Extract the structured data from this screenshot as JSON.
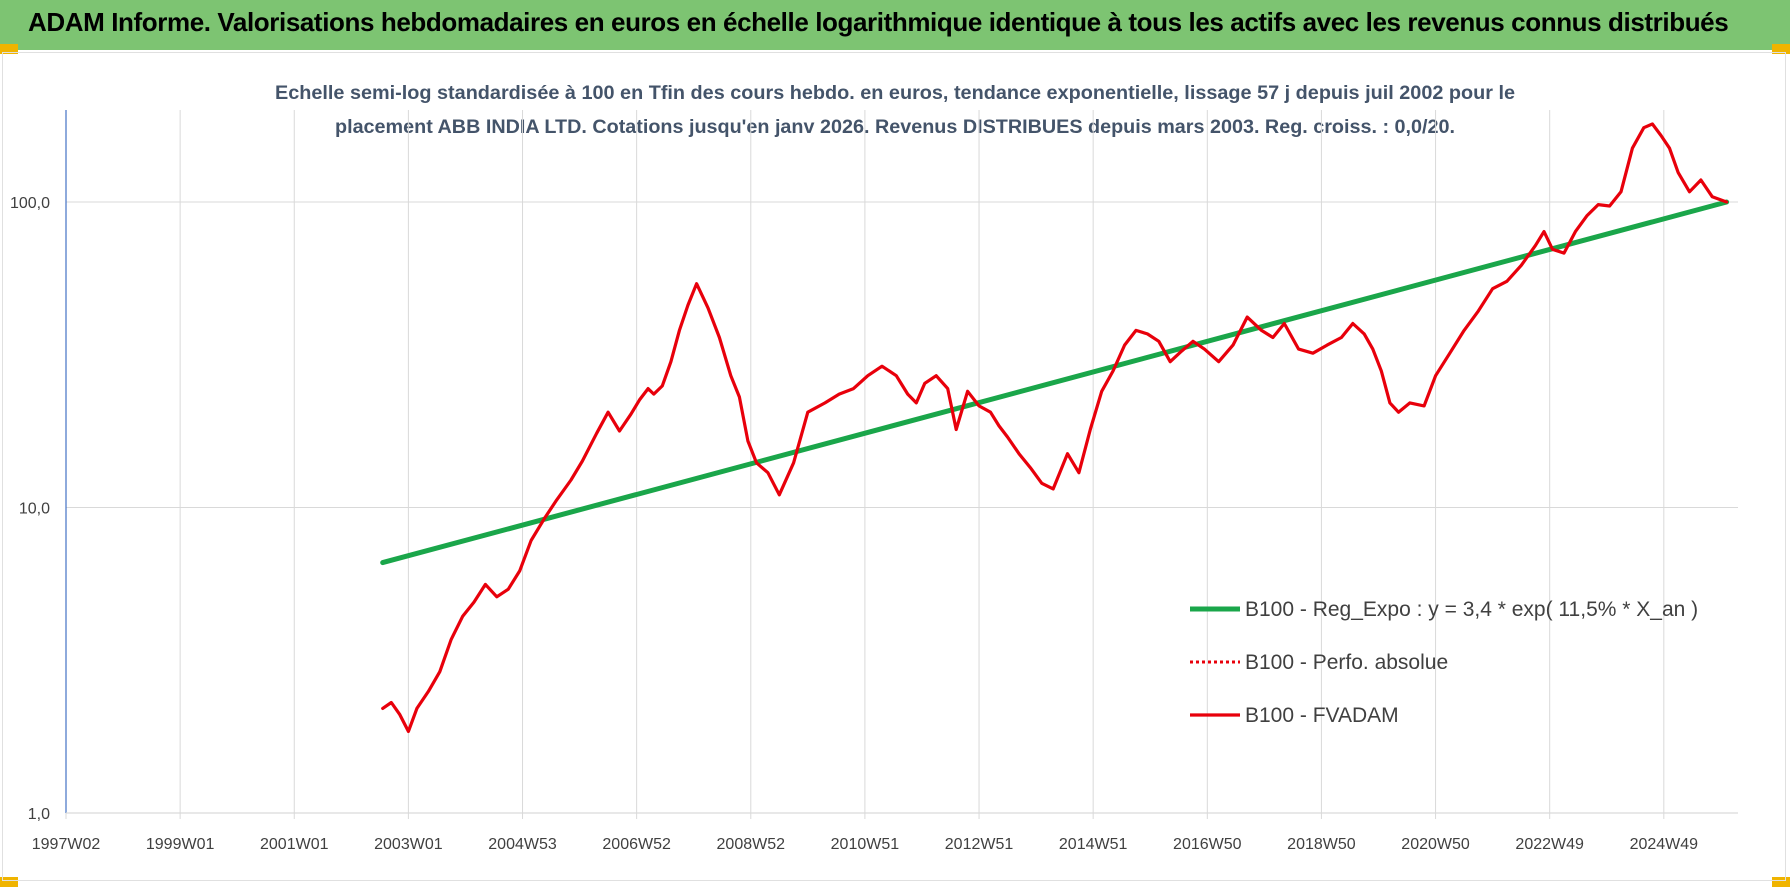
{
  "header": {
    "title": "ADAM Informe. Valorisations hebdomadaires en euros en échelle logarithmique identique à tous les actifs avec les revenus connus distribués"
  },
  "colors": {
    "header_bg": "#7dc472",
    "corner": "#f0b400",
    "trend_line": "#1aa64a",
    "fvadam_line": "#e8000b",
    "perfo_line": "#e8000b",
    "axis_text": "#404040",
    "title_text": "#44546a",
    "grid": "#d9d9d9",
    "axis_line": "#4472c4"
  },
  "chart_data": {
    "type": "line",
    "title_line1": "Echelle semi-log standardisée à 100 en Tfin des cours hebdo. en euros, tendance exponentielle, lissage 57 j depuis juil 2002 pour le",
    "title_line2": "placement ABB INDIA LTD. Cotations jusqu'en janv 2026. Revenus DISTRIBUES depuis mars 2003. Reg. croiss. : 0,0/20.",
    "y_scale": "log",
    "ylim": [
      1,
      200
    ],
    "y_ticks": [
      {
        "value": 1,
        "label": "1,0"
      },
      {
        "value": 10,
        "label": "10,0"
      },
      {
        "value": 100,
        "label": "100,0"
      }
    ],
    "xlim": [
      1997.0,
      2026.3
    ],
    "x_ticks": [
      {
        "value": 1997.0,
        "label": "1997W02"
      },
      {
        "value": 1999.0,
        "label": "1999W01"
      },
      {
        "value": 2001.0,
        "label": "2001W01"
      },
      {
        "value": 2003.0,
        "label": "2003W01"
      },
      {
        "value": 2005.0,
        "label": "2004W53"
      },
      {
        "value": 2007.0,
        "label": "2006W52"
      },
      {
        "value": 2009.0,
        "label": "2008W52"
      },
      {
        "value": 2011.0,
        "label": "2010W51"
      },
      {
        "value": 2013.0,
        "label": "2012W51"
      },
      {
        "value": 2015.0,
        "label": "2014W51"
      },
      {
        "value": 2017.0,
        "label": "2016W50"
      },
      {
        "value": 2019.0,
        "label": "2018W50"
      },
      {
        "value": 2021.0,
        "label": "2020W50"
      },
      {
        "value": 2023.0,
        "label": "2022W49"
      },
      {
        "value": 2025.0,
        "label": "2024W49"
      }
    ],
    "legend_position": "bottom-right",
    "series": [
      {
        "name": "B100 - Reg_Expo : y = 3,4 * exp( 11,5% *  X_an )",
        "style": "solid-thick",
        "x": [
          2002.55,
          2026.1
        ],
        "y": [
          6.6,
          100.0
        ]
      },
      {
        "name": "B100 - Perfo. absolue",
        "style": "dotted",
        "x": [],
        "y": []
      },
      {
        "name": "B100 - FVADAM",
        "style": "solid",
        "x": [
          2002.55,
          2002.7,
          2002.85,
          2003.0,
          2003.15,
          2003.35,
          2003.55,
          2003.75,
          2003.95,
          2004.15,
          2004.35,
          2004.55,
          2004.75,
          2004.95,
          2005.15,
          2005.4,
          2005.6,
          2005.85,
          2006.05,
          2006.3,
          2006.5,
          2006.7,
          2006.9,
          2007.05,
          2007.2,
          2007.3,
          2007.45,
          2007.6,
          2007.75,
          2007.9,
          2008.05,
          2008.25,
          2008.45,
          2008.65,
          2008.8,
          2008.95,
          2009.1,
          2009.3,
          2009.5,
          2009.75,
          2010.0,
          2010.3,
          2010.55,
          2010.8,
          2011.05,
          2011.3,
          2011.55,
          2011.75,
          2011.9,
          2012.05,
          2012.25,
          2012.45,
          2012.6,
          2012.8,
          2013.0,
          2013.2,
          2013.35,
          2013.5,
          2013.7,
          2013.9,
          2014.1,
          2014.3,
          2014.55,
          2014.75,
          2014.95,
          2015.15,
          2015.35,
          2015.55,
          2015.75,
          2015.95,
          2016.15,
          2016.35,
          2016.55,
          2016.75,
          2016.95,
          2017.2,
          2017.45,
          2017.7,
          2017.95,
          2018.15,
          2018.35,
          2018.6,
          2018.85,
          2019.1,
          2019.35,
          2019.55,
          2019.75,
          2019.9,
          2020.05,
          2020.2,
          2020.35,
          2020.55,
          2020.8,
          2021.0,
          2021.25,
          2021.5,
          2021.75,
          2022.0,
          2022.25,
          2022.5,
          2022.75,
          2022.9,
          2023.05,
          2023.25,
          2023.45,
          2023.65,
          2023.85,
          2024.05,
          2024.25,
          2024.45,
          2024.65,
          2024.8,
          2024.95,
          2025.1,
          2025.25,
          2025.45,
          2025.65,
          2025.85,
          2026.1
        ],
        "y": [
          2.2,
          2.3,
          2.1,
          1.85,
          2.2,
          2.5,
          2.9,
          3.7,
          4.4,
          4.9,
          5.6,
          5.1,
          5.4,
          6.2,
          7.8,
          9.3,
          10.6,
          12.3,
          14.2,
          17.5,
          20.5,
          17.8,
          20.2,
          22.5,
          24.5,
          23.5,
          25.0,
          30.0,
          38.0,
          46.0,
          54.0,
          45.0,
          36.0,
          27.0,
          23.0,
          16.5,
          14.0,
          13.0,
          11.0,
          14.0,
          20.5,
          22.0,
          23.5,
          24.5,
          27.0,
          29.0,
          27.0,
          23.5,
          22.0,
          25.5,
          27.0,
          24.5,
          18.0,
          24.0,
          21.5,
          20.5,
          18.5,
          17.0,
          15.0,
          13.5,
          12.0,
          11.5,
          15.0,
          13.0,
          18.0,
          24.0,
          28.0,
          34.0,
          38.0,
          37.0,
          35.0,
          30.0,
          32.5,
          35.0,
          33.0,
          30.0,
          34.0,
          42.0,
          38.0,
          36.0,
          40.0,
          33.0,
          32.0,
          34.0,
          36.0,
          40.0,
          37.0,
          33.0,
          28.0,
          22.0,
          20.5,
          22.0,
          21.5,
          27.0,
          32.0,
          38.0,
          44.0,
          52.0,
          55.0,
          62.0,
          72.0,
          80.0,
          70.0,
          68.0,
          80.0,
          90.0,
          98.0,
          97.0,
          108.0,
          150.0,
          175.0,
          180.0,
          165.0,
          150.0,
          125.0,
          108.0,
          118.0,
          104.0,
          100.0
        ]
      }
    ]
  }
}
